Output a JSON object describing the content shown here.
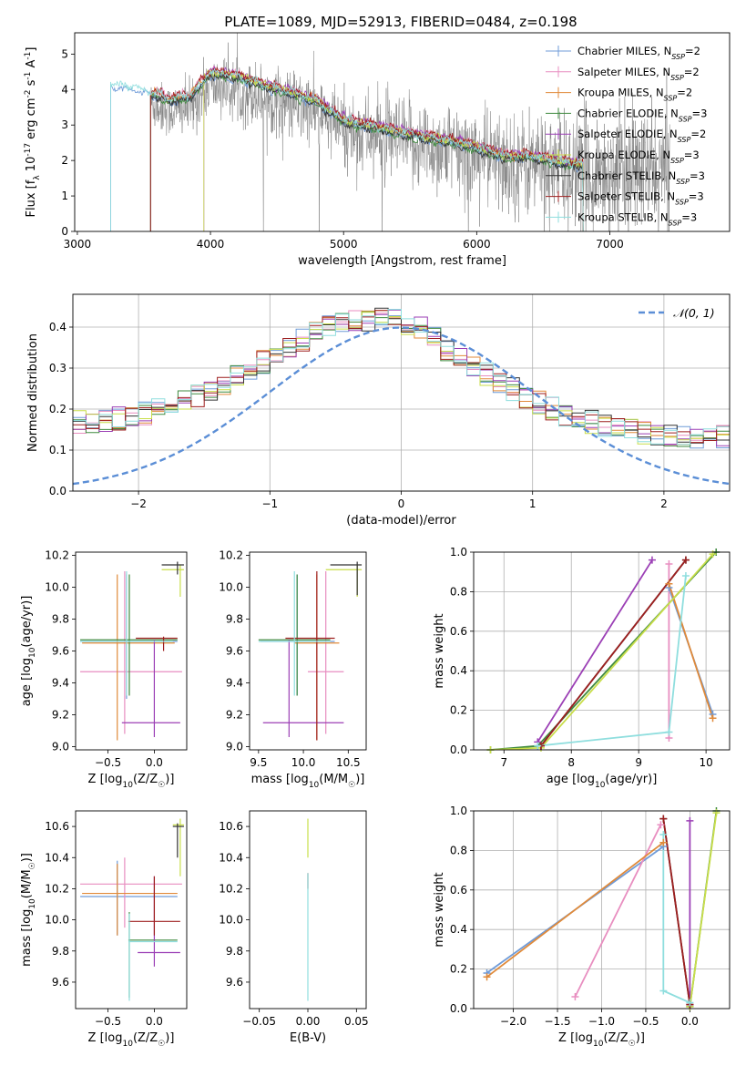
{
  "figure": {
    "title": "PLATE=1089, MJD=52913, FIBERID=0484, z=0.198",
    "colors": {
      "observed": "#808080",
      "gauss": "#5b8ed6",
      "grid": "#b0b0b0",
      "models": [
        "#6f9bd8",
        "#e88ec0",
        "#e08a3a",
        "#3f8a3f",
        "#9b3fb5",
        "#c9de4a",
        "#333333",
        "#9e1f1f",
        "#8fdede"
      ]
    },
    "model_names": [
      "Chabrier MILES, N_SSP=2",
      "Salpeter MILES, N_SSP=2",
      "Kroupa MILES, N_SSP=2",
      "Chabrier ELODIE, N_SSP=3",
      "Salpeter ELODIE, N_SSP=2",
      "Kroupa ELODIE, N_SSP=3",
      "Chabrier STELIB, N_SSP=3",
      "Salpeter STELIB, N_SSP=3",
      "Kroupa STELIB, N_SSP=3"
    ]
  },
  "chart_data": [
    {
      "id": "spectrum",
      "type": "line",
      "xlabel": "wavelength [Angstrom, rest frame]",
      "ylabel": "Flux [f_λ 10^-17 erg cm^-2 s^-1 A^-1]",
      "xlim": [
        2980,
        7900
      ],
      "ylim": [
        0,
        5.6
      ],
      "xticks": [
        3000,
        4000,
        5000,
        6000,
        7000
      ],
      "yticks": [
        0,
        1,
        2,
        3,
        4,
        5
      ],
      "grid": false,
      "legend": "top-right",
      "observed_range": [
        3550,
        7450
      ],
      "model_range": [
        3250,
        6800
      ],
      "continuum": [
        [
          3250,
          4.1
        ],
        [
          3400,
          4.0
        ],
        [
          3550,
          3.85
        ],
        [
          3700,
          3.65
        ],
        [
          3850,
          3.75
        ],
        [
          4000,
          4.4
        ],
        [
          4200,
          4.3
        ],
        [
          4400,
          4.05
        ],
        [
          4600,
          3.85
        ],
        [
          4800,
          3.6
        ],
        [
          5000,
          3.05
        ],
        [
          5200,
          2.9
        ],
        [
          5400,
          2.75
        ],
        [
          5600,
          2.6
        ],
        [
          5800,
          2.48
        ],
        [
          6000,
          2.3
        ],
        [
          6200,
          2.05
        ],
        [
          6400,
          2.05
        ],
        [
          6600,
          1.9
        ],
        [
          6800,
          1.8
        ]
      ]
    },
    {
      "id": "residuals",
      "type": "line",
      "xlabel": "(data-model)/error",
      "ylabel": "Normed distribution",
      "xlim": [
        -2.5,
        2.5
      ],
      "ylim": [
        0,
        0.48
      ],
      "xticks": [
        -2,
        -1,
        0,
        1,
        2
      ],
      "yticks": [
        0.0,
        0.1,
        0.2,
        0.3,
        0.4
      ],
      "grid": true,
      "legend": "top-right",
      "gauss_label": "𝒩(0, 1)"
    },
    {
      "id": "z-age",
      "type": "scatter",
      "xlabel": "Z [log10(Z/Z☉)]",
      "ylabel": "age [log10(age/yr)]",
      "xlim": [
        -0.85,
        0.35
      ],
      "ylim": [
        8.98,
        10.22
      ],
      "xticks": [
        -0.5,
        0.0
      ],
      "yticks": [
        9.0,
        9.2,
        9.4,
        9.6,
        9.8,
        10.0,
        10.2
      ],
      "grid": false,
      "points": [
        {
          "m": 0,
          "x": -0.3,
          "y": 9.66,
          "ex": [
            -0.8,
            0.25
          ],
          "ey": [
            9.3,
            10.08
          ]
        },
        {
          "m": 1,
          "x": -0.32,
          "y": 9.47,
          "ex": [
            -0.8,
            0.3
          ],
          "ey": [
            9.08,
            10.1
          ]
        },
        {
          "m": 2,
          "x": -0.4,
          "y": 9.65,
          "ex": [
            -0.78,
            0.22
          ],
          "ey": [
            9.04,
            10.08
          ]
        },
        {
          "m": 3,
          "x": -0.27,
          "y": 9.67,
          "ex": [
            -0.8,
            0.25
          ],
          "ey": [
            9.32,
            10.08
          ]
        },
        {
          "m": 4,
          "x": 0.0,
          "y": 9.15,
          "ex": [
            -0.35,
            0.28
          ],
          "ey": [
            9.06,
            9.67
          ]
        },
        {
          "m": 5,
          "x": 0.28,
          "y": 10.11,
          "ex": [
            0.08,
            0.32
          ],
          "ey": [
            9.94,
            10.14
          ]
        },
        {
          "m": 6,
          "x": 0.25,
          "y": 10.14,
          "ex": [
            0.08,
            0.32
          ],
          "ey": [
            10.08,
            10.16
          ]
        },
        {
          "m": 7,
          "x": 0.1,
          "y": 9.68,
          "ex": [
            -0.2,
            0.25
          ],
          "ey": [
            9.6,
            9.69
          ]
        },
        {
          "m": 8,
          "x": -0.3,
          "y": 9.66,
          "ex": [
            -0.8,
            0.2
          ],
          "ey": [
            9.32,
            10.1
          ]
        }
      ]
    },
    {
      "id": "mass-age",
      "type": "scatter",
      "xlabel": "mass [log10(M/M☉)]",
      "ylabel": "",
      "xlim": [
        9.4,
        10.7
      ],
      "ylim": [
        8.98,
        10.22
      ],
      "xticks": [
        9.5,
        10.0,
        10.5
      ],
      "yticks": [
        9.0,
        9.2,
        9.4,
        9.6,
        9.8,
        10.0,
        10.2
      ],
      "grid": false,
      "points": [
        {
          "m": 0,
          "x": 9.93,
          "y": 9.66,
          "ex": [
            9.52,
            10.35
          ],
          "ey": [
            9.32,
            10.08
          ]
        },
        {
          "m": 1,
          "x": 10.25,
          "y": 9.47,
          "ex": [
            10.05,
            10.45
          ],
          "ey": [
            9.08,
            10.1
          ]
        },
        {
          "m": 2,
          "x": 10.15,
          "y": 9.65,
          "ex": [
            9.9,
            10.4
          ],
          "ey": [
            9.04,
            10.08
          ]
        },
        {
          "m": 3,
          "x": 9.93,
          "y": 9.67,
          "ex": [
            9.5,
            10.3
          ],
          "ey": [
            9.32,
            10.08
          ]
        },
        {
          "m": 4,
          "x": 9.84,
          "y": 9.15,
          "ex": [
            9.55,
            10.45
          ],
          "ey": [
            9.06,
            9.67
          ]
        },
        {
          "m": 5,
          "x": 10.6,
          "y": 10.11,
          "ex": [
            10.25,
            10.65
          ],
          "ey": [
            9.94,
            10.14
          ]
        },
        {
          "m": 6,
          "x": 10.6,
          "y": 10.14,
          "ex": [
            10.3,
            10.65
          ],
          "ey": [
            9.95,
            10.16
          ]
        },
        {
          "m": 7,
          "x": 10.15,
          "y": 9.68,
          "ex": [
            9.8,
            10.35
          ],
          "ey": [
            9.04,
            10.1
          ]
        },
        {
          "m": 8,
          "x": 9.9,
          "y": 9.66,
          "ex": [
            9.5,
            10.3
          ],
          "ey": [
            9.32,
            10.1
          ]
        }
      ]
    },
    {
      "id": "age-weight",
      "type": "line",
      "xlabel": "age [log10(age/yr)]",
      "ylabel": "mass weight",
      "xlim": [
        6.55,
        10.35
      ],
      "ylim": [
        0,
        1.0
      ],
      "xticks": [
        7,
        8,
        9,
        10
      ],
      "yticks": [
        0.0,
        0.2,
        0.4,
        0.6,
        0.8,
        1.0
      ],
      "grid": true,
      "series": [
        {
          "m": 0,
          "points": [
            [
              9.45,
              0.82
            ],
            [
              10.1,
              0.18
            ]
          ]
        },
        {
          "m": 1,
          "points": [
            [
              9.45,
              0.94
            ],
            [
              9.45,
              0.06
            ]
          ]
        },
        {
          "m": 2,
          "points": [
            [
              9.45,
              0.84
            ],
            [
              10.1,
              0.16
            ]
          ]
        },
        {
          "m": 3,
          "points": [
            [
              6.8,
              0.0
            ],
            [
              7.5,
              0.02
            ],
            [
              10.15,
              1.0
            ]
          ]
        },
        {
          "m": 4,
          "points": [
            [
              7.5,
              0.04
            ],
            [
              9.2,
              0.96
            ]
          ]
        },
        {
          "m": 5,
          "points": [
            [
              6.8,
              0.0
            ],
            [
              7.55,
              0.01
            ],
            [
              10.1,
              0.99
            ]
          ]
        },
        {
          "m": 6,
          "points": [
            [
              7.55,
              0.02
            ],
            [
              9.7,
              0.96
            ]
          ]
        },
        {
          "m": 7,
          "points": [
            [
              7.55,
              0.02
            ],
            [
              9.7,
              0.96
            ]
          ]
        },
        {
          "m": 8,
          "points": [
            [
              7.5,
              0.02
            ],
            [
              9.45,
              0.09
            ],
            [
              9.7,
              0.88
            ]
          ]
        }
      ]
    },
    {
      "id": "z-mass",
      "type": "scatter",
      "xlabel": "Z [log10(Z/Z☉)]",
      "ylabel": "mass [log10(M/M☉)]",
      "xlim": [
        -0.85,
        0.35
      ],
      "ylim": [
        9.43,
        10.7
      ],
      "xticks": [
        -0.5,
        0.0
      ],
      "yticks": [
        9.6,
        9.8,
        10.0,
        10.2,
        10.4,
        10.6
      ],
      "grid": false,
      "points": [
        {
          "m": 0,
          "x": -0.4,
          "y": 10.15,
          "ex": [
            -0.8,
            0.25
          ],
          "ey": [
            9.9,
            10.38
          ]
        },
        {
          "m": 1,
          "x": -0.32,
          "y": 10.23,
          "ex": [
            -0.8,
            0.3
          ],
          "ey": [
            9.95,
            10.4
          ]
        },
        {
          "m": 2,
          "x": -0.4,
          "y": 10.17,
          "ex": [
            -0.78,
            0.25
          ],
          "ey": [
            9.9,
            10.36
          ]
        },
        {
          "m": 3,
          "x": -0.27,
          "y": 9.87,
          "ex": [
            -0.28,
            0.25
          ],
          "ey": [
            9.5,
            10.05
          ]
        },
        {
          "m": 4,
          "x": 0.0,
          "y": 9.79,
          "ex": [
            -0.18,
            0.28
          ],
          "ey": [
            9.7,
            10.28
          ]
        },
        {
          "m": 5,
          "x": 0.28,
          "y": 10.61,
          "ex": [
            0.2,
            0.32
          ],
          "ey": [
            10.28,
            10.65
          ]
        },
        {
          "m": 6,
          "x": 0.25,
          "y": 10.6,
          "ex": [
            0.2,
            0.32
          ],
          "ey": [
            10.4,
            10.62
          ]
        },
        {
          "m": 7,
          "x": 0.0,
          "y": 9.99,
          "ex": [
            -0.28,
            0.28
          ],
          "ey": [
            9.9,
            10.28
          ]
        },
        {
          "m": 8,
          "x": -0.27,
          "y": 9.86,
          "ex": [
            -0.28,
            0.25
          ],
          "ey": [
            9.48,
            10.04
          ]
        }
      ]
    },
    {
      "id": "ebv-mass",
      "type": "scatter",
      "xlabel": "E(B-V)",
      "ylabel": "",
      "xlim": [
        -0.06,
        0.06
      ],
      "ylim": [
        9.43,
        10.7
      ],
      "xticks": [
        -0.05,
        0.0,
        0.05
      ],
      "xtick_labels": [
        "−0.05",
        "0.00",
        "0.05"
      ],
      "yticks": [
        9.6,
        9.8,
        10.0,
        10.2,
        10.4,
        10.6
      ],
      "grid": false,
      "points": [
        {
          "m": 5,
          "x": 0.0,
          "y": 10.55,
          "ex": [
            0.0,
            0.0
          ],
          "ey": [
            10.4,
            10.65
          ]
        },
        {
          "m": 7,
          "x": 0.0,
          "y": 10.25,
          "ex": [
            0.0,
            0.0
          ],
          "ey": [
            10.2,
            10.3
          ]
        },
        {
          "m": 8,
          "x": 0.0,
          "y": 9.9,
          "ex": [
            0.0,
            0.0
          ],
          "ey": [
            9.48,
            10.3
          ]
        }
      ]
    },
    {
      "id": "z-weight",
      "type": "line",
      "xlabel": "Z [log10(Z/Z☉)]",
      "ylabel": "mass weight",
      "xlim": [
        -2.45,
        0.45
      ],
      "ylim": [
        0,
        1.0
      ],
      "xticks": [
        -2.0,
        -1.5,
        -1.0,
        -0.5,
        0.0
      ],
      "yticks": [
        0.0,
        0.2,
        0.4,
        0.6,
        0.8,
        1.0
      ],
      "grid": true,
      "series": [
        {
          "m": 0,
          "points": [
            [
              -2.3,
              0.18
            ],
            [
              -0.3,
              0.82
            ]
          ]
        },
        {
          "m": 1,
          "points": [
            [
              -1.3,
              0.06
            ],
            [
              -0.33,
              0.93
            ]
          ]
        },
        {
          "m": 2,
          "points": [
            [
              -2.3,
              0.16
            ],
            [
              -0.3,
              0.84
            ]
          ]
        },
        {
          "m": 3,
          "points": [
            [
              0.0,
              0.01
            ],
            [
              0.3,
              1.0
            ]
          ]
        },
        {
          "m": 4,
          "points": [
            [
              0.0,
              0.95
            ],
            [
              0.0,
              0.02
            ]
          ]
        },
        {
          "m": 5,
          "points": [
            [
              0.0,
              0.01
            ],
            [
              0.3,
              0.99
            ]
          ]
        },
        {
          "m": 6,
          "points": [
            [
              -0.3,
              0.96
            ],
            [
              0.0,
              0.02
            ]
          ]
        },
        {
          "m": 7,
          "points": [
            [
              -0.3,
              0.96
            ],
            [
              0.0,
              0.02
            ]
          ]
        },
        {
          "m": 8,
          "points": [
            [
              -0.3,
              0.88
            ],
            [
              -0.3,
              0.09
            ],
            [
              0.0,
              0.03
            ]
          ]
        }
      ]
    }
  ]
}
